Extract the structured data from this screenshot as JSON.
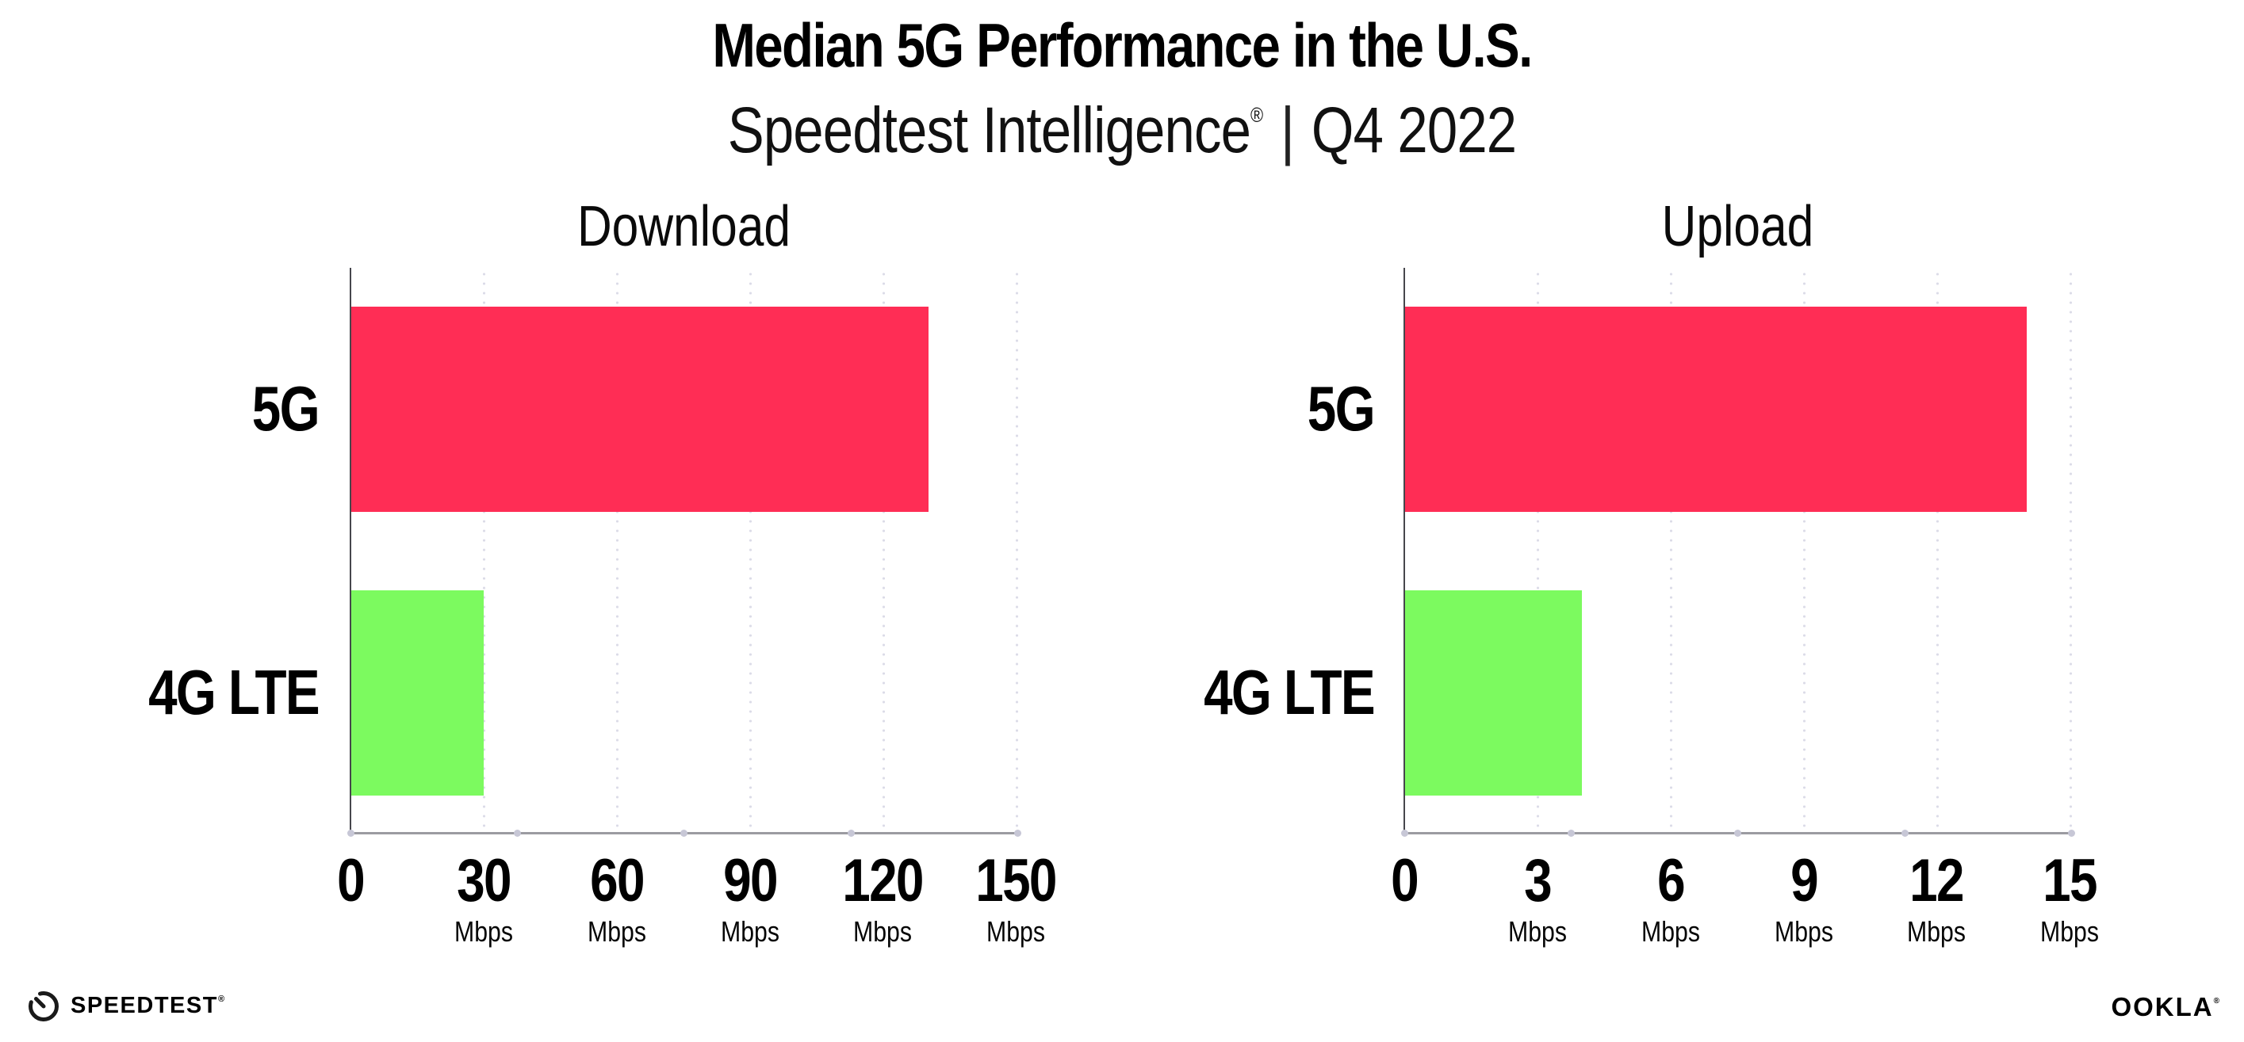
{
  "header": {
    "title": "Median 5G Performance in the U.S.",
    "subtitle": {
      "product": "Speedtest Intelligence",
      "trademark": "®",
      "divider": "|",
      "period": "Q4 2022"
    }
  },
  "chart_data": [
    {
      "type": "bar",
      "orientation": "horizontal",
      "title": "Download",
      "categories": [
        "5G",
        "4G LTE"
      ],
      "values": [
        130,
        30
      ],
      "unit": "Mbps",
      "xlim": [
        0,
        150
      ],
      "xticks": [
        0,
        30,
        60,
        90,
        120,
        150
      ],
      "xtick_labels": [
        {
          "num": "0",
          "unit": ""
        },
        {
          "num": "30",
          "unit": "Mbps"
        },
        {
          "num": "60",
          "unit": "Mbps"
        },
        {
          "num": "90",
          "unit": "Mbps"
        },
        {
          "num": "120",
          "unit": "Mbps"
        },
        {
          "num": "150",
          "unit": "Mbps"
        }
      ],
      "bar_colors": [
        "#FF2D55",
        "#7CFA5F"
      ],
      "grid": "dotted-vertical",
      "legend": "none"
    },
    {
      "type": "bar",
      "orientation": "horizontal",
      "title": "Upload",
      "categories": [
        "5G",
        "4G LTE"
      ],
      "values": [
        14,
        4
      ],
      "unit": "Mbps",
      "xlim": [
        0,
        15
      ],
      "xticks": [
        0,
        3,
        6,
        9,
        12,
        15
      ],
      "xtick_labels": [
        {
          "num": "0",
          "unit": ""
        },
        {
          "num": "3",
          "unit": "Mbps"
        },
        {
          "num": "6",
          "unit": "Mbps"
        },
        {
          "num": "9",
          "unit": "Mbps"
        },
        {
          "num": "12",
          "unit": "Mbps"
        },
        {
          "num": "15",
          "unit": "Mbps"
        }
      ],
      "bar_colors": [
        "#FF2D55",
        "#7CFA5F"
      ],
      "grid": "dotted-vertical",
      "legend": "none"
    }
  ],
  "footer": {
    "speedtest_wordmark": "SPEEDTEST",
    "speedtest_mark": "®",
    "ookla_wordmark": "OOKLA",
    "ookla_mark": "®"
  },
  "colors": {
    "bar_5g": "#FF2D55",
    "bar_4g_lte": "#7CFA5F",
    "x_axis_line": "#9b9ba1",
    "y_axis_line": "#46464c",
    "grid_dots": "#dcdce8",
    "axis_tick_dots": "#c7c7d6",
    "text": "#000000",
    "background": "#ffffff"
  }
}
